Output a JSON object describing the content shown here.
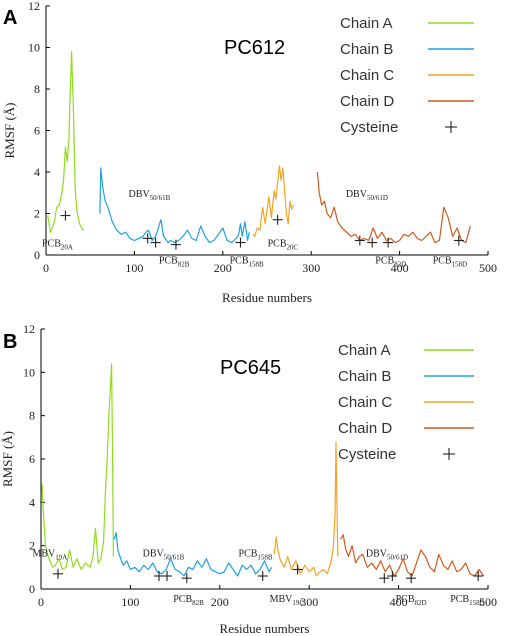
{
  "chart_data": [
    {
      "type": "line",
      "panel_label": "A",
      "title": "PC612",
      "xlabel": "Residue numbers",
      "ylabel": "RMSF (Å)",
      "xlim": [
        0,
        500
      ],
      "ylim": [
        0,
        12
      ],
      "xticks": [
        0,
        100,
        200,
        300,
        400,
        500
      ],
      "yticks": [
        0,
        2,
        4,
        6,
        8,
        10,
        12
      ],
      "grid": false,
      "legend_position": "top-right",
      "series": [
        {
          "name": "Chain A",
          "color": "#8fdc1e",
          "x": [
            2,
            5,
            8,
            10,
            12,
            15,
            18,
            20,
            22,
            24,
            26,
            27,
            28,
            29,
            30,
            31,
            32,
            33,
            35,
            38,
            40,
            43
          ],
          "y": [
            1.9,
            1.1,
            1.4,
            1.7,
            2.3,
            2.4,
            3.0,
            3.7,
            5.2,
            4.5,
            5.6,
            7.5,
            8.6,
            9.8,
            8.3,
            7.1,
            4.9,
            3.2,
            2.1,
            1.5,
            1.3,
            1.2
          ]
        },
        {
          "name": "Chain B",
          "color": "#1fa2e0",
          "x": [
            61,
            62,
            64,
            67,
            70,
            75,
            80,
            85,
            90,
            95,
            100,
            105,
            110,
            113,
            116,
            120,
            124,
            127,
            130,
            133,
            135,
            138,
            141,
            145,
            150,
            155,
            160,
            165,
            170,
            175,
            180,
            185,
            190,
            195,
            200,
            205,
            210,
            215,
            218,
            220,
            222,
            225,
            228,
            230
          ],
          "y": [
            2.0,
            4.2,
            3.3,
            2.6,
            2.3,
            1.6,
            1.2,
            1.0,
            1.1,
            0.8,
            0.7,
            0.8,
            0.9,
            1.1,
            1.2,
            0.7,
            0.9,
            1.3,
            1.7,
            0.9,
            0.8,
            0.6,
            0.7,
            0.6,
            0.7,
            0.9,
            1.2,
            0.8,
            0.7,
            1.4,
            0.9,
            0.6,
            0.7,
            1.0,
            1.3,
            0.7,
            0.6,
            0.8,
            1.0,
            1.5,
            0.9,
            1.6,
            0.7,
            1.1
          ]
        },
        {
          "name": "Chain C",
          "color": "#f3a423",
          "x": [
            234,
            236,
            239,
            242,
            245,
            248,
            252,
            255,
            258,
            260,
            262,
            264,
            266,
            268,
            270,
            272,
            274,
            276,
            278,
            280
          ],
          "y": [
            1.0,
            0.9,
            1.3,
            1.2,
            2.3,
            1.5,
            2.8,
            1.8,
            3.1,
            2.7,
            3.5,
            4.3,
            3.6,
            4.2,
            3.0,
            2.0,
            1.5,
            2.6,
            2.2,
            2.4
          ]
        },
        {
          "name": "Chain D",
          "color": "#cf5a1e",
          "x": [
            307,
            309,
            312,
            315,
            318,
            322,
            326,
            330,
            335,
            340,
            345,
            350,
            355,
            360,
            365,
            370,
            375,
            380,
            385,
            390,
            395,
            400,
            405,
            410,
            415,
            420,
            425,
            430,
            435,
            440,
            445,
            450,
            455,
            460,
            465,
            470,
            475,
            480
          ],
          "y": [
            4.0,
            3.0,
            2.4,
            2.6,
            2.0,
            1.8,
            2.3,
            1.6,
            1.3,
            1.1,
            0.9,
            1.0,
            0.7,
            0.8,
            0.7,
            1.3,
            0.8,
            1.1,
            0.7,
            0.8,
            0.6,
            0.7,
            1.0,
            0.9,
            1.1,
            0.8,
            0.7,
            0.9,
            1.1,
            0.6,
            0.7,
            2.3,
            1.8,
            0.9,
            1.3,
            0.7,
            0.6,
            1.4
          ]
        }
      ],
      "cysteine_points": [
        {
          "x": 22,
          "y": 1.9
        },
        {
          "x": 115,
          "y": 0.8
        },
        {
          "x": 124,
          "y": 0.6
        },
        {
          "x": 147,
          "y": 0.5
        },
        {
          "x": 220,
          "y": 0.6
        },
        {
          "x": 262,
          "y": 1.7
        },
        {
          "x": 355,
          "y": 0.7
        },
        {
          "x": 369,
          "y": 0.6
        },
        {
          "x": 387,
          "y": 0.6
        },
        {
          "x": 467,
          "y": 0.7
        }
      ],
      "legend_cysteine_label": "Cysteine",
      "annotations": [
        {
          "base": "PCB",
          "sub": "20A",
          "x": 13,
          "y": 0.4
        },
        {
          "base": "DBV",
          "sub": "50/61B",
          "x": 117,
          "y": 2.8
        },
        {
          "base": "PCB",
          "sub": "82B",
          "x": 145,
          "y": -0.4
        },
        {
          "base": "PCB",
          "sub": "158B",
          "x": 227,
          "y": -0.4
        },
        {
          "base": "PCB",
          "sub": "20C",
          "x": 268,
          "y": 0.4
        },
        {
          "base": "DBV",
          "sub": "50/61D",
          "x": 363,
          "y": 2.8
        },
        {
          "base": "PCB",
          "sub": "82D",
          "x": 390,
          "y": -0.4
        },
        {
          "base": "PCB",
          "sub": "158D",
          "x": 457,
          "y": -0.4
        }
      ]
    },
    {
      "type": "line",
      "panel_label": "B",
      "title": "PC645",
      "xlabel": "Residue numbers",
      "ylabel": "RMSF (Å)",
      "xlim": [
        0,
        500
      ],
      "ylim": [
        0,
        12
      ],
      "xticks": [
        0,
        100,
        200,
        300,
        400,
        500
      ],
      "yticks": [
        0,
        2,
        4,
        6,
        8,
        10,
        12
      ],
      "grid": false,
      "legend_position": "top-right",
      "series": [
        {
          "name": "Chain A",
          "color": "#8fdc1e",
          "x": [
            1,
            3,
            5,
            8,
            10,
            13,
            16,
            20,
            24,
            28,
            32,
            36,
            40,
            45,
            50,
            55,
            58,
            61,
            64,
            67,
            70,
            72,
            74,
            76,
            78,
            79,
            80,
            81
          ],
          "y": [
            4.9,
            3.3,
            2.0,
            1.5,
            1.3,
            1.0,
            1.1,
            1.4,
            0.9,
            1.0,
            1.8,
            1.0,
            1.4,
            0.9,
            1.2,
            1.0,
            1.5,
            2.8,
            1.2,
            1.4,
            2.2,
            4.5,
            6.0,
            8.0,
            9.5,
            10.4,
            6.5,
            1.5
          ]
        },
        {
          "name": "Chain B",
          "color": "#1fa2e0",
          "x": [
            82,
            84,
            86,
            89,
            92,
            96,
            100,
            105,
            110,
            115,
            120,
            125,
            130,
            135,
            140,
            145,
            150,
            155,
            160,
            165,
            170,
            175,
            180,
            185,
            190,
            195,
            200,
            205,
            210,
            215,
            220,
            225,
            230,
            235,
            240,
            245,
            250,
            255,
            258
          ],
          "y": [
            2.3,
            2.6,
            1.8,
            1.4,
            1.1,
            1.3,
            0.9,
            1.0,
            0.8,
            1.1,
            0.9,
            1.2,
            0.8,
            0.7,
            0.9,
            1.4,
            0.9,
            0.8,
            0.6,
            1.0,
            0.9,
            1.3,
            1.0,
            1.4,
            0.9,
            0.8,
            0.7,
            0.8,
            1.2,
            0.9,
            0.6,
            1.1,
            0.9,
            1.1,
            0.7,
            0.9,
            1.3,
            0.8,
            1.0
          ]
        },
        {
          "name": "Chain C",
          "color": "#f3a423",
          "x": [
            261,
            263,
            265,
            268,
            272,
            276,
            280,
            285,
            290,
            295,
            300,
            305,
            308,
            312,
            316,
            320,
            324,
            327,
            329,
            330,
            331,
            332
          ],
          "y": [
            1.6,
            2.4,
            1.8,
            1.3,
            1.0,
            1.5,
            0.9,
            1.3,
            0.7,
            1.1,
            0.8,
            1.0,
            0.6,
            0.8,
            0.9,
            0.7,
            1.2,
            1.9,
            3.5,
            6.8,
            4.0,
            1.5
          ]
        },
        {
          "name": "Chain D",
          "color": "#cf5a1e",
          "x": [
            335,
            338,
            341,
            344,
            348,
            352,
            356,
            360,
            365,
            370,
            375,
            380,
            385,
            390,
            395,
            400,
            405,
            410,
            415,
            420,
            425,
            430,
            435,
            440,
            445,
            450,
            455,
            460,
            465,
            470,
            475,
            480,
            485,
            490,
            495
          ],
          "y": [
            2.3,
            2.5,
            1.8,
            1.5,
            2.0,
            1.2,
            1.5,
            1.6,
            1.0,
            1.2,
            0.9,
            1.3,
            0.8,
            1.1,
            0.6,
            0.9,
            1.4,
            0.8,
            0.6,
            1.2,
            1.8,
            1.5,
            1.0,
            0.8,
            1.6,
            1.1,
            0.9,
            1.3,
            0.8,
            0.9,
            1.2,
            0.7,
            0.6,
            0.9,
            0.6
          ]
        }
      ],
      "cysteine_points": [
        {
          "x": 19,
          "y": 0.7
        },
        {
          "x": 132,
          "y": 0.6
        },
        {
          "x": 141,
          "y": 0.6
        },
        {
          "x": 163,
          "y": 0.5
        },
        {
          "x": 248,
          "y": 0.6
        },
        {
          "x": 287,
          "y": 0.9
        },
        {
          "x": 384,
          "y": 0.5
        },
        {
          "x": 393,
          "y": 0.6
        },
        {
          "x": 414,
          "y": 0.5
        },
        {
          "x": 489,
          "y": 0.6
        }
      ],
      "legend_cysteine_label": "Cysteine",
      "annotations": [
        {
          "base": "MBV",
          "sub": "19A",
          "x": 10,
          "y": 1.5
        },
        {
          "base": "DBV",
          "sub": "50/61B",
          "x": 137,
          "y": 1.5
        },
        {
          "base": "PCB",
          "sub": "82B",
          "x": 165,
          "y": -0.6
        },
        {
          "base": "PCB",
          "sub": "158B",
          "x": 240,
          "y": 1.5
        },
        {
          "base": "MBV",
          "sub": "19C",
          "x": 275,
          "y": -0.6
        },
        {
          "base": "DBV",
          "sub": "50/61D",
          "x": 387,
          "y": 1.5
        },
        {
          "base": "PCB",
          "sub": "82D",
          "x": 414,
          "y": -0.6
        },
        {
          "base": "PCB",
          "sub": "158D",
          "x": 477,
          "y": -0.6
        }
      ]
    }
  ]
}
